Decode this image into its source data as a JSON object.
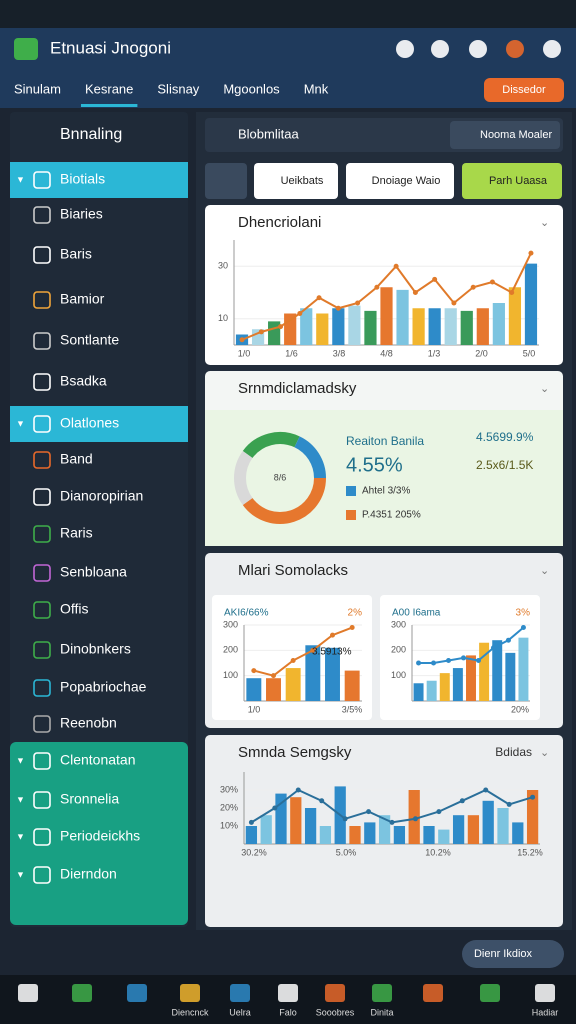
{
  "window": {
    "title": "Etnuasi Jnogoni"
  },
  "tabs": [
    "Sinulam",
    "Kesrane",
    "Slisnay",
    "Mgoonlos",
    "Mnk"
  ],
  "action_button": "Dissedor",
  "sidebar": {
    "header": "Bnnaling",
    "items": [
      {
        "label": "Biotials",
        "highlight": "cyan"
      },
      {
        "label": "Biaries"
      },
      {
        "label": "Baris"
      },
      {
        "label": "Bamior"
      },
      {
        "label": "Sontlante"
      },
      {
        "label": "Bsadka"
      },
      {
        "label": "Olatlones",
        "highlight": "cyan"
      },
      {
        "label": "Band"
      },
      {
        "label": "Dianoropirian"
      },
      {
        "label": "Raris"
      },
      {
        "label": "Senbloana"
      },
      {
        "label": "Offis"
      },
      {
        "label": "Dinobnkers"
      },
      {
        "label": "Popabriochae"
      },
      {
        "label": "Reenobn"
      },
      {
        "label": "Clentonatan",
        "highlight": "green"
      },
      {
        "label": "Sronnelia",
        "highlight": "green"
      },
      {
        "label": "Periodeickhs",
        "highlight": "green"
      },
      {
        "label": "Dierndon",
        "highlight": "green"
      }
    ]
  },
  "search": {
    "label": "Blobmlitaa",
    "button": "Nooma Moaler"
  },
  "toolbar": [
    "Ueikbats",
    "Dnoiage Waio",
    "Parh Uaasa"
  ],
  "chart1": {
    "title": "Dhencriolani",
    "ylim": [
      0,
      40
    ],
    "yticks": [
      10,
      30
    ],
    "bars": [
      4,
      6,
      9,
      12,
      14,
      12,
      14,
      15,
      13,
      22,
      21,
      14,
      14,
      14,
      13,
      14,
      16,
      22,
      31
    ],
    "palette": [
      "#2e8bc9",
      "#a9d6e5",
      "#3a9a5a",
      "#e6772e",
      "#7cc4e0",
      "#f1b52e"
    ],
    "line": [
      2,
      5,
      7,
      12,
      18,
      14,
      16,
      22,
      30,
      20,
      25,
      16,
      22,
      24,
      20,
      35
    ],
    "line_color": "#e07a2a",
    "x_labels": [
      "1/0",
      "1/6",
      "3/8",
      "4/8",
      "1/3",
      "2/0",
      "5/0"
    ]
  },
  "donut": {
    "title": "Srnmdiclamadsky",
    "center": "8/6",
    "values": [
      22,
      18,
      40,
      20
    ],
    "colors": [
      "#3aa150",
      "#2e8bc9",
      "#e6772e",
      "#d9d9d9"
    ],
    "heading": "Reaiton Banila",
    "big": "4.55%",
    "legend": [
      "Ahtel 3/3%",
      "P.4351 205%"
    ],
    "legend_colors": [
      "#2e8bc9",
      "#e6772e"
    ],
    "stats": [
      "4.5699.9%",
      "2.5x6/1.5K"
    ]
  },
  "minis": {
    "title": "Mlari Somolacks",
    "charts": [
      {
        "title": "AKI6/66%",
        "corner": "2%",
        "note": "3.5913%",
        "ylim": [
          0,
          300
        ],
        "yticks": [
          100,
          200,
          300
        ],
        "bars": [
          90,
          90,
          130,
          220,
          210,
          120
        ],
        "palette": [
          "#2e8bc9",
          "#e6772e",
          "#f1b52e",
          "#2e8bc9",
          "#2e8bc9",
          "#e6772e"
        ],
        "line": [
          120,
          100,
          160,
          200,
          260,
          290
        ],
        "line_color": "#e07a2a",
        "x_labels": [
          "1/0",
          "3/5%"
        ]
      },
      {
        "title": "A00 I6ama",
        "corner": "3%",
        "ylim": [
          0,
          300
        ],
        "yticks": [
          100,
          200,
          300
        ],
        "bars": [
          70,
          80,
          110,
          130,
          180,
          230,
          240,
          190,
          250
        ],
        "palette": [
          "#2e8bc9",
          "#7cc4e0",
          "#f1b52e",
          "#2e8bc9",
          "#e6772e",
          "#f1b52e",
          "#2e8bc9"
        ],
        "line": [
          150,
          150,
          160,
          170,
          160,
          210,
          240,
          290
        ],
        "line_color": "#2e8bc9",
        "x_labels": [
          "20%"
        ]
      }
    ]
  },
  "chart4": {
    "title": "Smnda Semgsky",
    "corner": "Bdidas",
    "ylim": [
      0,
      40
    ],
    "yticks": [
      {
        "value": 10,
        "label": "10%"
      },
      {
        "value": 20,
        "label": "20%"
      },
      {
        "value": 30,
        "label": "30%"
      }
    ],
    "bars": [
      10,
      16,
      28,
      26,
      20,
      10,
      32,
      10,
      12,
      16,
      10,
      30,
      10,
      8,
      16,
      16,
      24,
      20,
      12,
      30
    ],
    "palette": [
      "#2e8bc9",
      "#7cc4e0",
      "#2e8bc9",
      "#e6772e"
    ],
    "line": [
      12,
      20,
      30,
      24,
      14,
      18,
      12,
      14,
      18,
      24,
      30,
      22,
      26
    ],
    "line_color": "#2a6f9a",
    "x_labels": [
      "30.2%",
      "5.0%",
      "10.2%",
      "15.2%"
    ]
  },
  "footer_button": "Dienr Ikdiox",
  "taskbar": [
    "Diencnck",
    "Uelra",
    "Falo",
    "Sooobres",
    "Dinita",
    "Hadiar"
  ]
}
